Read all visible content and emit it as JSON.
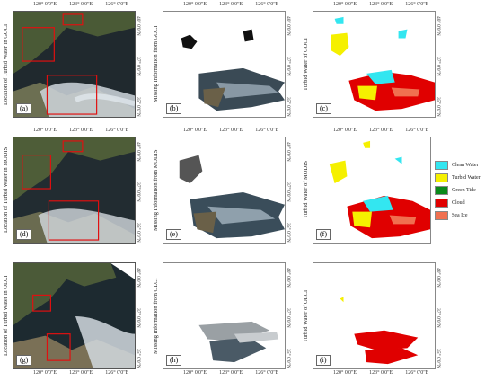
{
  "ticks": {
    "top": [
      "120° 0'0\"E",
      "123° 0'0\"E",
      "126° 0'0\"E"
    ],
    "right": [
      "40° 0'0\"N",
      "37° 0'0\"N",
      "35° 0'0\"N"
    ]
  },
  "rows": [
    {
      "left_labels": [
        "Location of Turbid Water in GOCI",
        "Missing Information from GOCI",
        "Turbid Water of GOCI"
      ],
      "panel_labels": [
        "(a)",
        "(b)",
        "(c)"
      ]
    },
    {
      "left_labels": [
        "Location of Turbid Water in MODIS",
        "Missing Information from MODIS",
        "Turbid Water of MODIS"
      ],
      "panel_labels": [
        "(d)",
        "(e)",
        "(f)"
      ]
    },
    {
      "left_labels": [
        "Location of Turbid Water in OLCI",
        "Missing Information from OLCI",
        "Turbid Water of OLCI"
      ],
      "panel_labels": [
        "(g)",
        "(h)",
        "(i)"
      ]
    }
  ],
  "legend": [
    {
      "label": "Clean Water",
      "color": "#33e6f0"
    },
    {
      "label": "Turbid Water",
      "color": "#f5f000"
    },
    {
      "label": "Green Tide",
      "color": "#0a8a1a"
    },
    {
      "label": "Cloud",
      "color": "#e00000"
    },
    {
      "label": "Sea Ice",
      "color": "#f07050"
    }
  ]
}
